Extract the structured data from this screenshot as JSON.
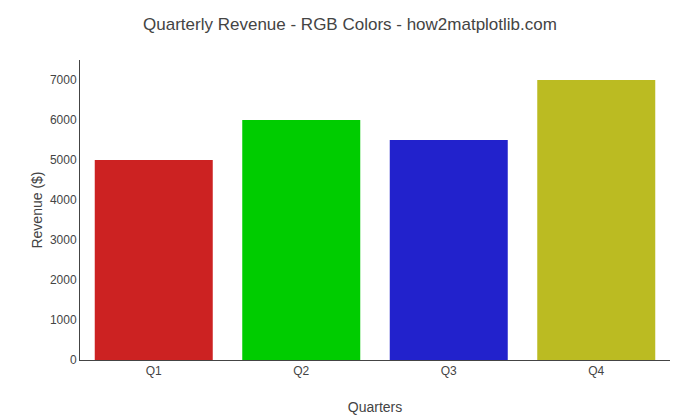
{
  "chart_data": {
    "type": "bar",
    "title": "Quarterly Revenue - RGB Colors - how2matplotlib.com",
    "xlabel": "Quarters",
    "ylabel": "Revenue ($)",
    "categories": [
      "Q1",
      "Q2",
      "Q3",
      "Q4"
    ],
    "values": [
      5000,
      6000,
      5500,
      7000
    ],
    "colors": [
      "#cc2222",
      "#00cc00",
      "#2222cc",
      "#bbbb22"
    ],
    "ylim": [
      0,
      7500
    ],
    "yticks": [
      0,
      1000,
      2000,
      3000,
      4000,
      5000,
      6000,
      7000
    ],
    "grid": false
  }
}
